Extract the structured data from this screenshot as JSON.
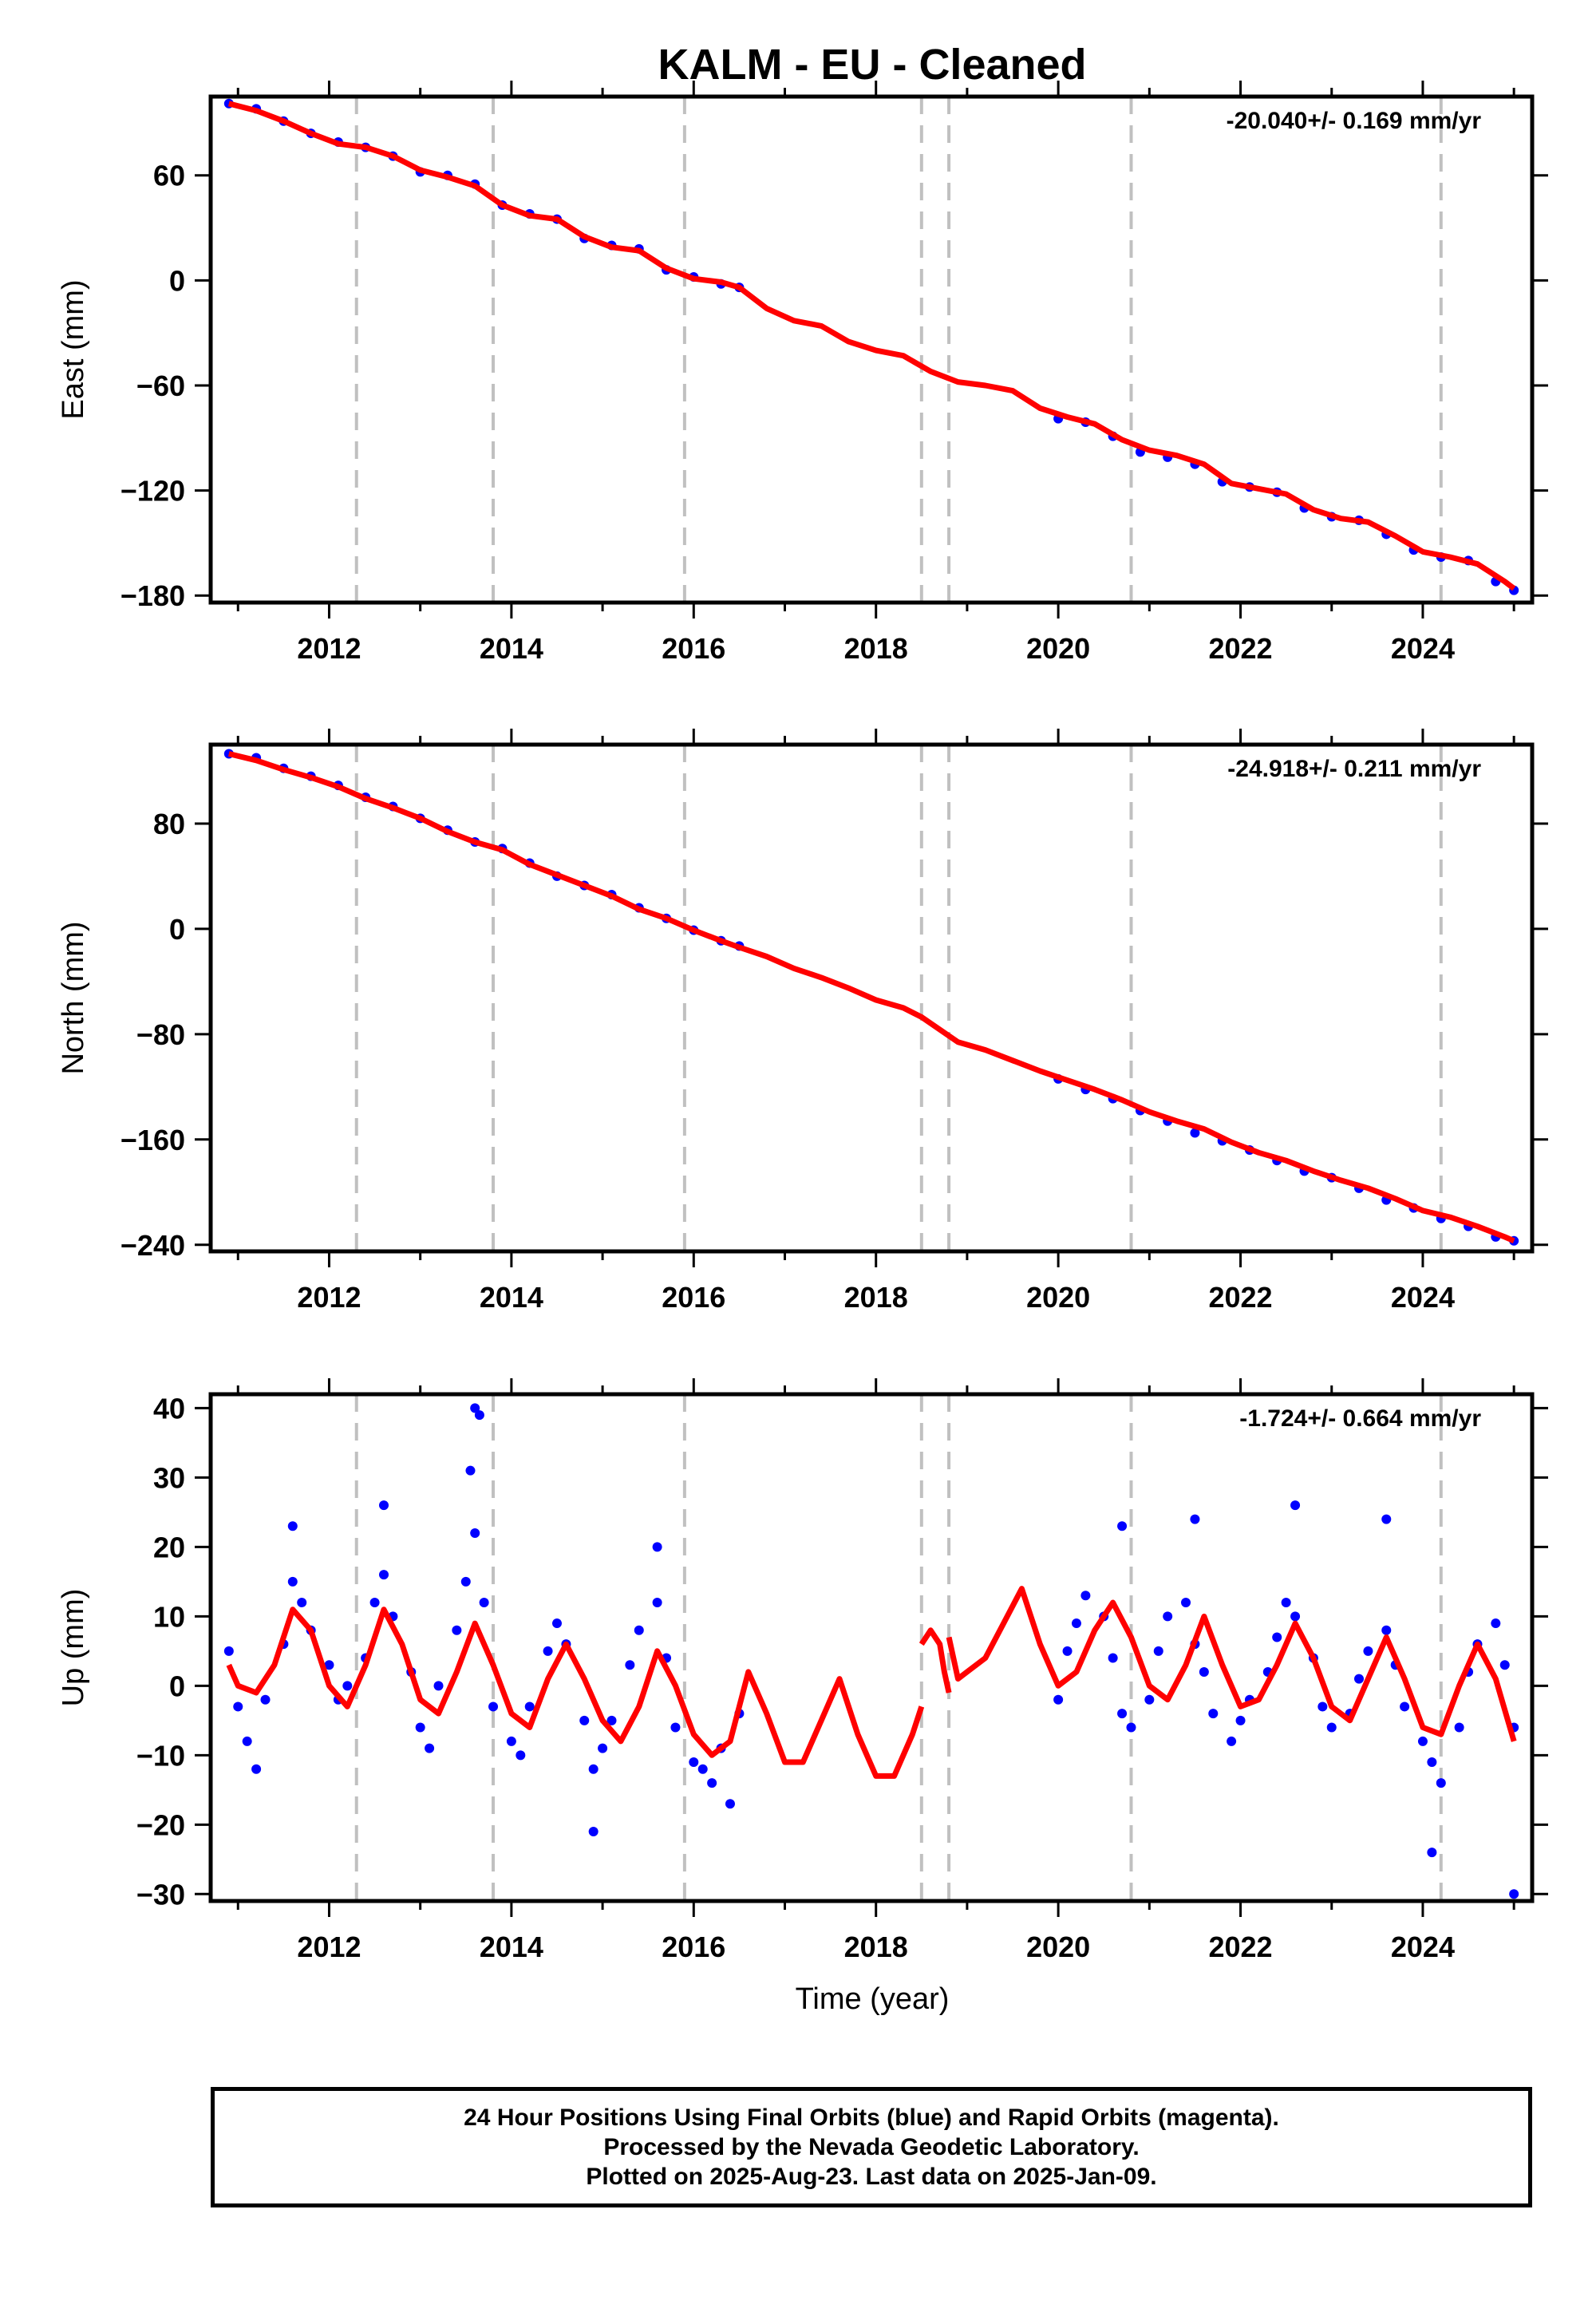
{
  "title": "KALM  - EU - Cleaned",
  "xlabel": "Time (year)",
  "colors": {
    "points": "#0000ff",
    "model": "#ff0000",
    "grid": "#c0c0c0",
    "frame": "#000000"
  },
  "chart_data": [
    {
      "type": "scatter",
      "ylabel": "East (mm)",
      "rate": "-20.040+/- 0.169 mm/yr",
      "xlim": [
        2010.7,
        2025.2
      ],
      "ylim": [
        -184,
        105
      ],
      "xticks": [
        "2012",
        "2014",
        "2016",
        "2018",
        "2020",
        "2022",
        "2024"
      ],
      "yticks": [
        "60",
        "0",
        "−60",
        "−120",
        "−180"
      ],
      "series": [
        {
          "kind": "points",
          "x": [
            2010.9,
            2011.2,
            2011.5,
            2011.8,
            2012.1,
            2012.4,
            2012.7,
            2013.0,
            2013.3,
            2013.6,
            2013.9,
            2014.2,
            2014.5,
            2014.8,
            2015.1,
            2015.4,
            2015.7,
            2016.0,
            2016.3,
            2016.5,
            2020.0,
            2020.3,
            2020.6,
            2020.9,
            2021.2,
            2021.5,
            2021.8,
            2022.1,
            2022.4,
            2022.7,
            2023.0,
            2023.3,
            2023.6,
            2023.9,
            2024.2,
            2024.5,
            2024.8,
            2025.0
          ],
          "y": [
            101,
            98,
            91,
            84,
            79,
            76,
            71,
            62,
            60,
            55,
            43,
            38,
            35,
            24,
            20,
            18,
            6,
            2,
            -2,
            -4,
            -79,
            -81,
            -89,
            -98,
            -101,
            -105,
            -115,
            -118,
            -121,
            -130,
            -135,
            -137,
            -145,
            -154,
            -158,
            -160,
            -172,
            -177
          ]
        },
        {
          "kind": "model",
          "x": [
            2010.9,
            2011.2,
            2011.5,
            2011.8,
            2012.1,
            2012.4,
            2012.7,
            2013.0,
            2013.3,
            2013.6,
            2013.9,
            2014.2,
            2014.5,
            2014.8,
            2015.1,
            2015.4,
            2015.7,
            2016.0,
            2016.3,
            2016.5,
            2016.8,
            2017.1,
            2017.4,
            2017.7,
            2018.0,
            2018.3,
            2018.6,
            2018.9,
            2019.2,
            2019.5,
            2019.8,
            2020.1,
            2020.4,
            2020.7,
            2021.0,
            2021.3,
            2021.6,
            2021.9,
            2022.2,
            2022.5,
            2022.8,
            2023.1,
            2023.4,
            2023.7,
            2024.0,
            2024.3,
            2024.6,
            2024.9,
            2025.0
          ],
          "y": [
            101,
            97,
            91,
            84,
            78,
            76,
            71,
            63,
            59,
            54,
            43,
            37,
            35,
            25,
            19,
            17,
            7,
            1,
            -1,
            -4,
            -16,
            -23,
            -26,
            -35,
            -40,
            -43,
            -52,
            -58,
            -60,
            -63,
            -73,
            -78,
            -82,
            -91,
            -97,
            -100,
            -105,
            -116,
            -119,
            -122,
            -131,
            -136,
            -138,
            -146,
            -155,
            -158,
            -162,
            -172,
            -176
          ]
        }
      ],
      "vlines": [
        2012.3,
        2013.8,
        2015.9,
        2018.5,
        2018.8,
        2020.8,
        2024.2
      ]
    },
    {
      "type": "scatter",
      "ylabel": "North (mm)",
      "rate": "-24.918+/- 0.211 mm/yr",
      "xlim": [
        2010.7,
        2025.2
      ],
      "ylim": [
        -245,
        140
      ],
      "xticks": [
        "2012",
        "2014",
        "2016",
        "2018",
        "2020",
        "2022",
        "2024"
      ],
      "yticks": [
        "80",
        "0",
        "−80",
        "−160",
        "−240"
      ],
      "series": [
        {
          "kind": "points",
          "x": [
            2010.9,
            2011.2,
            2011.5,
            2011.8,
            2012.1,
            2012.4,
            2012.7,
            2013.0,
            2013.3,
            2013.6,
            2013.9,
            2014.2,
            2014.5,
            2014.8,
            2015.1,
            2015.4,
            2015.7,
            2016.0,
            2016.3,
            2016.5,
            2020.0,
            2020.3,
            2020.6,
            2020.9,
            2021.2,
            2021.5,
            2021.8,
            2022.1,
            2022.4,
            2022.7,
            2023.0,
            2023.3,
            2023.6,
            2023.9,
            2024.2,
            2024.5,
            2024.8,
            2025.0
          ],
          "y": [
            133,
            130,
            122,
            116,
            109,
            100,
            93,
            84,
            75,
            66,
            61,
            50,
            40,
            33,
            26,
            16,
            8,
            -1,
            -9,
            -13,
            -114,
            -122,
            -129,
            -138,
            -146,
            -155,
            -161,
            -168,
            -176,
            -184,
            -189,
            -197,
            -206,
            -212,
            -220,
            -226,
            -234,
            -237
          ]
        },
        {
          "kind": "model",
          "x": [
            2010.9,
            2011.2,
            2011.5,
            2011.8,
            2012.1,
            2012.4,
            2012.7,
            2013.0,
            2013.3,
            2013.6,
            2013.9,
            2014.2,
            2014.5,
            2014.8,
            2015.1,
            2015.4,
            2015.7,
            2016.0,
            2016.3,
            2016.5,
            2016.8,
            2017.1,
            2017.4,
            2017.7,
            2018.0,
            2018.3,
            2018.5,
            2018.9,
            2019.2,
            2019.5,
            2019.8,
            2020.1,
            2020.4,
            2020.7,
            2021.0,
            2021.3,
            2021.6,
            2021.9,
            2022.2,
            2022.5,
            2022.8,
            2023.1,
            2023.4,
            2023.7,
            2024.0,
            2024.3,
            2024.6,
            2024.9,
            2025.0
          ],
          "y": [
            133,
            128,
            121,
            115,
            108,
            99,
            92,
            84,
            74,
            66,
            60,
            49,
            41,
            33,
            25,
            15,
            8,
            -1,
            -9,
            -14,
            -21,
            -30,
            -37,
            -45,
            -54,
            -60,
            -67,
            -86,
            -92,
            -100,
            -108,
            -115,
            -122,
            -130,
            -139,
            -146,
            -152,
            -162,
            -170,
            -176,
            -184,
            -191,
            -197,
            -205,
            -214,
            -219,
            -226,
            -234,
            -237
          ]
        }
      ],
      "vlines": [
        2012.3,
        2013.8,
        2015.9,
        2018.5,
        2018.8,
        2020.8,
        2024.2
      ]
    },
    {
      "type": "scatter",
      "ylabel": "Up (mm)",
      "rate": "-1.724+/- 0.664 mm/yr",
      "xlim": [
        2010.7,
        2025.2
      ],
      "ylim": [
        -31,
        42
      ],
      "xticks": [
        "2012",
        "2014",
        "2016",
        "2018",
        "2020",
        "2022",
        "2024"
      ],
      "yticks": [
        "40",
        "30",
        "20",
        "10",
        "0",
        "−10",
        "−20",
        "−30"
      ],
      "series": [
        {
          "kind": "points",
          "x": [
            2010.9,
            2011.0,
            2011.1,
            2011.2,
            2011.3,
            2011.5,
            2011.6,
            2011.7,
            2011.8,
            2012.0,
            2012.1,
            2012.2,
            2012.4,
            2012.5,
            2012.6,
            2012.7,
            2012.9,
            2013.0,
            2013.1,
            2013.2,
            2013.4,
            2013.5,
            2013.6,
            2013.7,
            2013.8,
            2014.0,
            2014.1,
            2014.2,
            2014.4,
            2014.5,
            2014.6,
            2014.8,
            2014.9,
            2015.0,
            2015.1,
            2015.3,
            2015.4,
            2015.6,
            2015.7,
            2015.8,
            2016.0,
            2016.1,
            2016.2,
            2016.3,
            2016.5,
            2020.0,
            2020.1,
            2020.2,
            2020.3,
            2020.5,
            2020.6,
            2020.7,
            2020.8,
            2021.0,
            2021.1,
            2021.2,
            2021.4,
            2021.5,
            2021.6,
            2021.7,
            2021.9,
            2022.0,
            2022.1,
            2022.3,
            2022.4,
            2022.5,
            2022.6,
            2022.8,
            2022.9,
            2023.0,
            2023.2,
            2023.3,
            2023.4,
            2023.6,
            2023.7,
            2023.8,
            2024.0,
            2024.1,
            2024.2,
            2024.4,
            2024.5,
            2024.6,
            2024.8,
            2024.9,
            2025.0,
            2011.6,
            2012.6,
            2013.55,
            2013.6,
            2013.65,
            2014.9,
            2015.6,
            2016.4,
            2021.5,
            2022.6,
            2023.6,
            2024.1,
            2025.0,
            2020.7
          ],
          "y": [
            5,
            -3,
            -8,
            -12,
            -2,
            6,
            15,
            12,
            8,
            3,
            -2,
            0,
            4,
            12,
            16,
            10,
            2,
            -6,
            -9,
            0,
            8,
            15,
            22,
            12,
            -3,
            -8,
            -10,
            -3,
            5,
            9,
            6,
            -5,
            -12,
            -9,
            -5,
            3,
            8,
            12,
            4,
            -6,
            -11,
            -12,
            -14,
            -9,
            -4,
            -2,
            5,
            9,
            13,
            10,
            4,
            -4,
            -6,
            -2,
            5,
            10,
            12,
            6,
            2,
            -4,
            -8,
            -5,
            -2,
            2,
            7,
            12,
            10,
            4,
            -3,
            -6,
            -4,
            1,
            5,
            8,
            3,
            -3,
            -8,
            -11,
            -14,
            -6,
            2,
            6,
            9,
            3,
            -6,
            23,
            26,
            31,
            40,
            39,
            -21,
            20,
            -17,
            24,
            26,
            24,
            -24,
            -30,
            23
          ]
        },
        {
          "kind": "model",
          "x": [
            2010.9,
            2011.0,
            2011.2,
            2011.4,
            2011.6,
            2011.8,
            2012.0,
            2012.2,
            2012.4,
            2012.6,
            2012.8,
            2013.0,
            2013.2,
            2013.4,
            2013.6,
            2013.8,
            2014.0,
            2014.2,
            2014.4,
            2014.6,
            2014.8,
            2015.0,
            2015.2,
            2015.4,
            2015.6,
            2015.8,
            2016.0,
            2016.2,
            2016.4,
            2016.6,
            2016.8,
            2017.0,
            2017.2,
            2017.4,
            2017.6,
            2017.8,
            2018.0,
            2018.2,
            2018.4,
            2018.5
          ],
          "y": [
            3,
            0,
            -1,
            3,
            11,
            8,
            0,
            -3,
            3,
            11,
            6,
            -2,
            -4,
            2,
            9,
            3,
            -4,
            -6,
            1,
            6,
            1,
            -5,
            -8,
            -3,
            5,
            0,
            -7,
            -10,
            -8,
            2,
            -4,
            -11,
            -11,
            -5,
            1,
            -7,
            -13,
            -13,
            -7,
            -3
          ]
        },
        {
          "kind": "model",
          "x": [
            2018.5,
            2018.6,
            2018.7,
            2018.75,
            2018.8
          ],
          "y": [
            6,
            8,
            6,
            2,
            -1
          ]
        },
        {
          "kind": "model",
          "x": [
            2018.8,
            2018.9,
            2019.0,
            2019.2,
            2019.4,
            2019.6,
            2019.8,
            2020.0,
            2020.2,
            2020.4,
            2020.6,
            2020.8,
            2021.0,
            2021.2,
            2021.4,
            2021.6,
            2021.8,
            2022.0,
            2022.2,
            2022.4,
            2022.6,
            2022.8,
            2023.0,
            2023.2,
            2023.4,
            2023.6,
            2023.8,
            2024.0,
            2024.2,
            2024.4,
            2024.6,
            2024.8,
            2025.0
          ],
          "y": [
            7,
            1,
            2,
            4,
            9,
            14,
            6,
            0,
            2,
            8,
            12,
            7,
            0,
            -2,
            3,
            10,
            3,
            -3,
            -2,
            3,
            9,
            4,
            -3,
            -5,
            1,
            7,
            1,
            -6,
            -7,
            0,
            6,
            1,
            -8
          ]
        }
      ],
      "vlines": [
        2012.3,
        2013.8,
        2015.9,
        2018.5,
        2018.8,
        2020.8,
        2024.2
      ]
    }
  ],
  "footer": {
    "line1": "24 Hour Positions Using Final Orbits (blue) and Rapid Orbits (magenta).",
    "line2": "Processed by the Nevada Geodetic Laboratory.",
    "line3": "Plotted on 2025-Aug-23. Last data on 2025-Jan-09."
  }
}
